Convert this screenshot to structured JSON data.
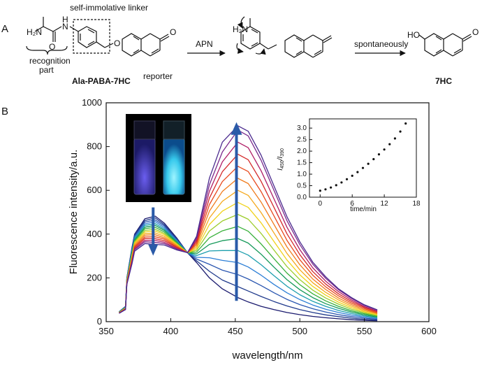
{
  "panel_a": {
    "letter": "A",
    "label_h2n": "H₂N",
    "label_nh": "N",
    "label_h_on_n": "H",
    "label_o": "O",
    "label_o2": "O",
    "label_o3": "O",
    "label_ho": "HO",
    "linker_label": "self-immolative linker",
    "recognition_label_1": "recognition",
    "recognition_label_2": "part",
    "compound_1": "Ala-PABA-7HC",
    "reporter_label": "reporter",
    "arrow_1_label": "APN",
    "intermediate_h2n": "H₂N",
    "arrow_2_label": "spontaneously",
    "compound_2": "7HC"
  },
  "panel_b": {
    "letter": "B",
    "inset_photo_desc": "cuvettes-photo",
    "colors": {
      "arrow": "#2a5aa8",
      "spectra": [
        "#1a1a6e",
        "#203a8c",
        "#2a56b0",
        "#2d7fd6",
        "#1e9fae",
        "#169a5a",
        "#38b03a",
        "#9ccc2a",
        "#f0d21a",
        "#f5a81c",
        "#f07c1e",
        "#e84a1e",
        "#d42a2a",
        "#b01e66",
        "#7a2a8c",
        "#4a2a8e"
      ]
    }
  },
  "chart_data": [
    {
      "type": "line",
      "title": "",
      "xlabel": "wavelength/nm",
      "ylabel": "Fluorescence intensity/a.u.",
      "xlim": [
        350,
        600
      ],
      "ylim": [
        0,
        1000
      ],
      "xticks": [
        350,
        400,
        450,
        500,
        550,
        600
      ],
      "yticks": [
        0,
        200,
        400,
        600,
        800,
        1000
      ],
      "grid": false,
      "isosbestic_nm": 413,
      "peak_1_nm": 388,
      "peak_2_nm": 452,
      "x": [
        360,
        365,
        366,
        370,
        372,
        380,
        388,
        395,
        405,
        413,
        420,
        430,
        440,
        452,
        460,
        470,
        480,
        490,
        500,
        510,
        520,
        530,
        540,
        550,
        560
      ],
      "series": [
        {
          "values": [
            45,
            70,
            200,
            340,
            400,
            470,
            482,
            450,
            380,
            315,
            270,
            200,
            150,
            110,
            90,
            70,
            55,
            42,
            32,
            24,
            18,
            13,
            9,
            6,
            4
          ]
        },
        {
          "values": [
            45,
            69,
            198,
            335,
            395,
            462,
            474,
            443,
            376,
            315,
            278,
            230,
            190,
            160,
            140,
            115,
            92,
            72,
            55,
            42,
            31,
            23,
            16,
            11,
            7
          ]
        },
        {
          "values": [
            44,
            68,
            196,
            330,
            390,
            455,
            465,
            437,
            373,
            315,
            286,
            262,
            235,
            215,
            195,
            165,
            132,
            102,
            78,
            59,
            44,
            32,
            23,
            16,
            11
          ]
        },
        {
          "values": [
            44,
            67,
            194,
            325,
            385,
            447,
            457,
            430,
            369,
            315,
            294,
            292,
            280,
            270,
            250,
            212,
            170,
            132,
            101,
            76,
            57,
            42,
            30,
            21,
            14
          ]
        },
        {
          "values": [
            43,
            66,
            192,
            320,
            380,
            440,
            448,
            423,
            366,
            315,
            302,
            323,
            325,
            325,
            304,
            260,
            210,
            162,
            123,
            93,
            70,
            51,
            37,
            26,
            18
          ]
        },
        {
          "values": [
            43,
            65,
            190,
            315,
            374,
            432,
            440,
            417,
            362,
            315,
            310,
            353,
            370,
            380,
            359,
            308,
            249,
            192,
            146,
            110,
            82,
            61,
            44,
            31,
            21
          ]
        },
        {
          "values": [
            42,
            64,
            188,
            310,
            369,
            425,
            431,
            410,
            359,
            315,
            318,
            383,
            415,
            435,
            413,
            355,
            288,
            222,
            169,
            127,
            95,
            70,
            50,
            36,
            25
          ]
        },
        {
          "values": [
            42,
            63,
            186,
            305,
            364,
            417,
            422,
            403,
            355,
            315,
            326,
            414,
            460,
            490,
            468,
            403,
            327,
            252,
            192,
            144,
            108,
            80,
            57,
            41,
            28
          ]
        },
        {
          "values": [
            41,
            62,
            184,
            300,
            359,
            410,
            414,
            397,
            352,
            315,
            334,
            444,
            505,
            545,
            522,
            451,
            366,
            282,
            214,
            161,
            121,
            89,
            64,
            45,
            31
          ]
        },
        {
          "values": [
            41,
            61,
            182,
            295,
            354,
            402,
            405,
            390,
            348,
            315,
            342,
            474,
            550,
            600,
            577,
            498,
            405,
            312,
            237,
            178,
            134,
            99,
            71,
            50,
            35
          ]
        },
        {
          "values": [
            40,
            60,
            180,
            290,
            348,
            395,
            397,
            383,
            345,
            315,
            350,
            505,
            595,
            655,
            631,
            546,
            444,
            342,
            260,
            195,
            147,
            108,
            78,
            55,
            38
          ]
        },
        {
          "values": [
            40,
            59,
            178,
            285,
            343,
            387,
            388,
            377,
            341,
            315,
            358,
            535,
            640,
            710,
            686,
            594,
            483,
            372,
            283,
            212,
            159,
            118,
            85,
            60,
            41
          ]
        },
        {
          "values": [
            39,
            58,
            176,
            280,
            338,
            380,
            379,
            370,
            338,
            315,
            366,
            565,
            685,
            765,
            740,
            641,
            522,
            402,
            306,
            229,
            172,
            127,
            92,
            65,
            45
          ]
        },
        {
          "values": [
            39,
            57,
            174,
            275,
            333,
            372,
            371,
            363,
            334,
            315,
            374,
            596,
            730,
            820,
            795,
            689,
            561,
            432,
            329,
            246,
            185,
            137,
            99,
            69,
            48
          ]
        },
        {
          "values": [
            38,
            56,
            172,
            270,
            328,
            365,
            362,
            357,
            331,
            315,
            382,
            626,
            775,
            875,
            849,
            737,
            600,
            462,
            352,
            263,
            198,
            146,
            106,
            74,
            52
          ]
        },
        {
          "values": [
            38,
            55,
            170,
            265,
            322,
            357,
            353,
            350,
            327,
            315,
            390,
            656,
            820,
            895,
            870,
            760,
            620,
            480,
            365,
            272,
            205,
            150,
            110,
            77,
            54
          ]
        }
      ]
    },
    {
      "type": "scatter",
      "title": "",
      "xlabel": "time/min",
      "ylabel": "I450/I390",
      "ylabel_main": "I",
      "ylabel_sub1": "450",
      "ylabel_sep": "/I",
      "ylabel_sub2": "390",
      "xlim": [
        -2,
        18
      ],
      "ylim": [
        0,
        3.4
      ],
      "xticks": [
        0,
        6,
        12,
        18
      ],
      "yticks": [
        0.0,
        0.5,
        1.0,
        1.5,
        2.0,
        2.5,
        3.0
      ],
      "xtick_labels": [
        "0",
        "6",
        "12",
        "18"
      ],
      "ytick_labels": [
        "0.0",
        "0.5",
        "1.0",
        "1.5",
        "2.0",
        "2.5",
        "3.0"
      ],
      "x": [
        0,
        1,
        2,
        3,
        4,
        5,
        6,
        7,
        8,
        9,
        10,
        11,
        12,
        13,
        14,
        15,
        16
      ],
      "y": [
        0.28,
        0.34,
        0.42,
        0.52,
        0.64,
        0.78,
        0.93,
        1.09,
        1.27,
        1.45,
        1.65,
        1.86,
        2.07,
        2.3,
        2.55,
        2.85,
        3.2
      ]
    }
  ]
}
